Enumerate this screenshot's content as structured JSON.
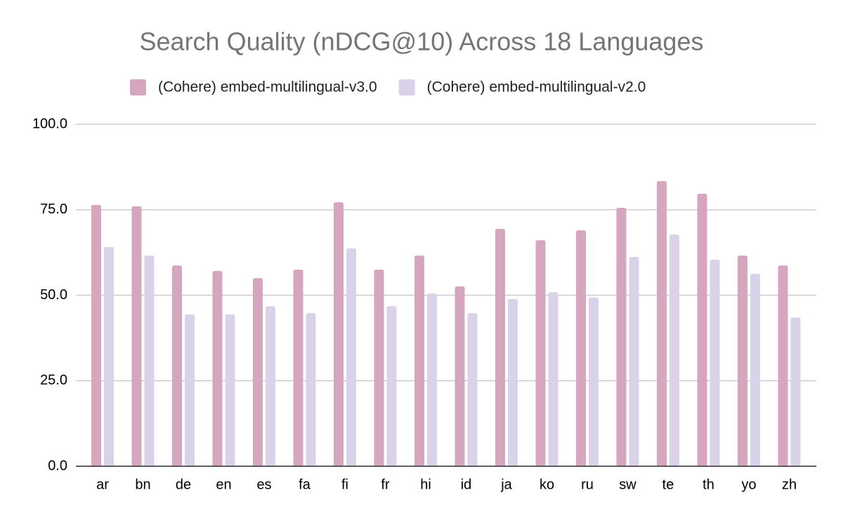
{
  "chart_data": {
    "type": "bar",
    "title": "Search Quality (nDCG@10) Across 18 Languages",
    "categories": [
      "ar",
      "bn",
      "de",
      "en",
      "es",
      "fa",
      "fi",
      "fr",
      "hi",
      "id",
      "ja",
      "ko",
      "ru",
      "sw",
      "te",
      "th",
      "yo",
      "zh"
    ],
    "series": [
      {
        "name": "(Cohere) embed-multilingual-v3.0",
        "color": "#d5a6bd",
        "values": [
          76.4,
          76.0,
          58.7,
          57.1,
          55.0,
          57.5,
          77.2,
          57.5,
          61.6,
          52.6,
          69.4,
          66.1,
          69.0,
          75.6,
          83.4,
          79.7,
          61.6,
          58.7
        ]
      },
      {
        "name": "(Cohere) embed-multilingual-v2.0",
        "color": "#d9d2e9",
        "values": [
          64.1,
          61.6,
          44.4,
          44.4,
          46.8,
          44.8,
          63.7,
          46.8,
          50.5,
          44.8,
          48.9,
          50.9,
          49.3,
          61.2,
          67.8,
          60.4,
          56.3,
          43.5
        ]
      }
    ],
    "ylim": [
      0,
      100
    ],
    "yticks": [
      {
        "value": 0,
        "label": "0.0"
      },
      {
        "value": 25,
        "label": "25.0"
      },
      {
        "value": 50,
        "label": "50.0"
      },
      {
        "value": 75,
        "label": "75.0"
      },
      {
        "value": 100,
        "label": "100.0"
      }
    ],
    "grid": true,
    "legend": "top"
  }
}
